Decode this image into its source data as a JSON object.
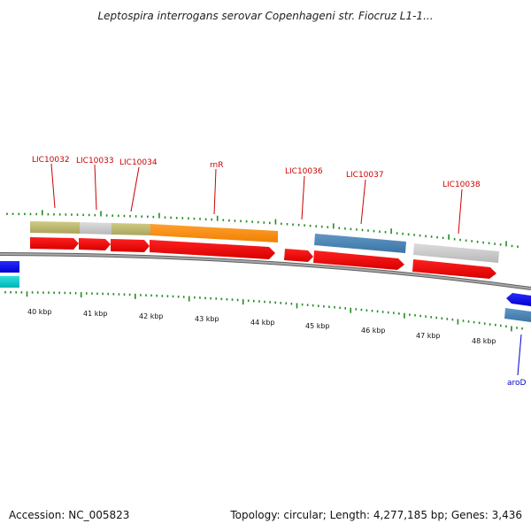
{
  "title": "Leptospira interrogans serovar Copenhageni str. Fiocruz L1-1...",
  "footer": {
    "accession": "Accession: NC_005823",
    "summary": "Topology: circular; Length: 4,277,185 bp; Genes: 3,436"
  },
  "colors": {
    "label_forward": "#cc0000",
    "label_reverse": "#0000cc",
    "backbone": "#808080",
    "tick": "#228b22",
    "cds_red": "#ee0000",
    "olive": "#b9b56e",
    "gray": "#c8c8c8",
    "orange": "#ff8c00",
    "steelblue": "#4682b4",
    "blue": "#0000ee",
    "cyan": "#00c8c8"
  },
  "ruler": {
    "tick_labels": [
      "40 kbp",
      "41 kbp",
      "42 kbp",
      "43 kbp",
      "44 kbp",
      "45 kbp",
      "46 kbp",
      "47 kbp",
      "48 kbp"
    ]
  },
  "gene_labels": [
    {
      "name": "LIC10032",
      "strand": "forward"
    },
    {
      "name": "LIC10033",
      "strand": "forward"
    },
    {
      "name": "LIC10034",
      "strand": "forward"
    },
    {
      "name": "rnR",
      "strand": "forward"
    },
    {
      "name": "LIC10036",
      "strand": "forward"
    },
    {
      "name": "LIC10037",
      "strand": "forward"
    },
    {
      "name": "LIC10038",
      "strand": "forward"
    },
    {
      "name": "aroD",
      "strand": "reverse"
    }
  ]
}
